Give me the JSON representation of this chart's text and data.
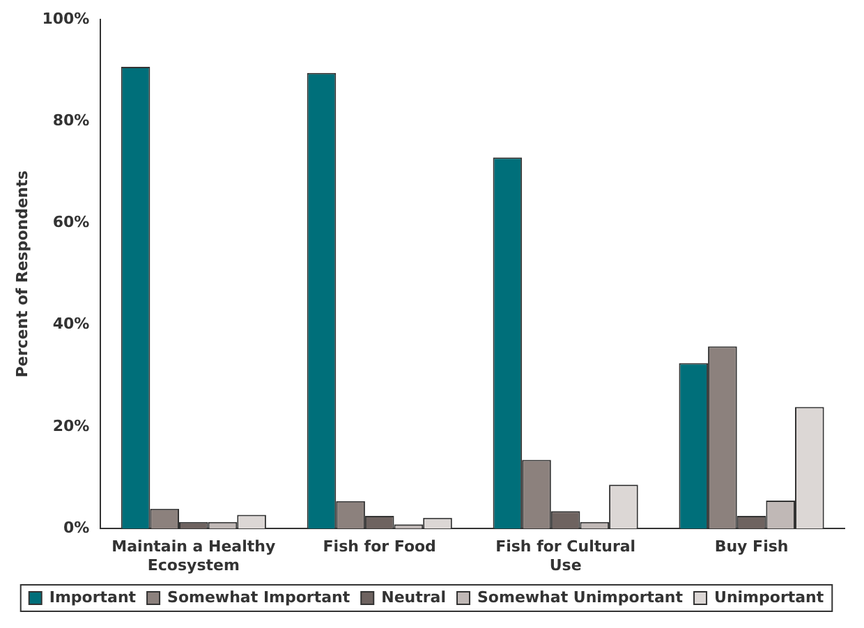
{
  "chart_data": {
    "type": "bar",
    "ylabel": "Percent of Respondents",
    "categories": [
      "Maintain a Healthy Ecosystem",
      "Fish for Food",
      "Fish for Cultural Use",
      "Buy Fish"
    ],
    "series": [
      {
        "name": "Important",
        "color": "#006f7a",
        "values": [
          90.7,
          89.5,
          72.9,
          32.5
        ]
      },
      {
        "name": "Somewhat Important",
        "color": "#8c817d",
        "values": [
          3.9,
          5.4,
          13.5,
          35.8
        ]
      },
      {
        "name": "Neutral",
        "color": "#6e6360",
        "values": [
          1.3,
          2.5,
          3.4,
          2.5
        ]
      },
      {
        "name": "Somewhat Unimportant",
        "color": "#c0b8b6",
        "values": [
          1.3,
          0.8,
          1.3,
          5.5
        ]
      },
      {
        "name": "Unimportant",
        "color": "#dcd7d5",
        "values": [
          2.7,
          2.1,
          8.6,
          23.9
        ]
      }
    ],
    "ylim": [
      0,
      100
    ],
    "yticks": [
      {
        "value": 0,
        "label": "0%"
      },
      {
        "value": 20,
        "label": "20%"
      },
      {
        "value": 40,
        "label": "40%"
      },
      {
        "value": 60,
        "label": "60%"
      },
      {
        "value": 80,
        "label": "80%"
      },
      {
        "value": 100,
        "label": "100%"
      }
    ],
    "grid": false,
    "legend": "bottom"
  }
}
